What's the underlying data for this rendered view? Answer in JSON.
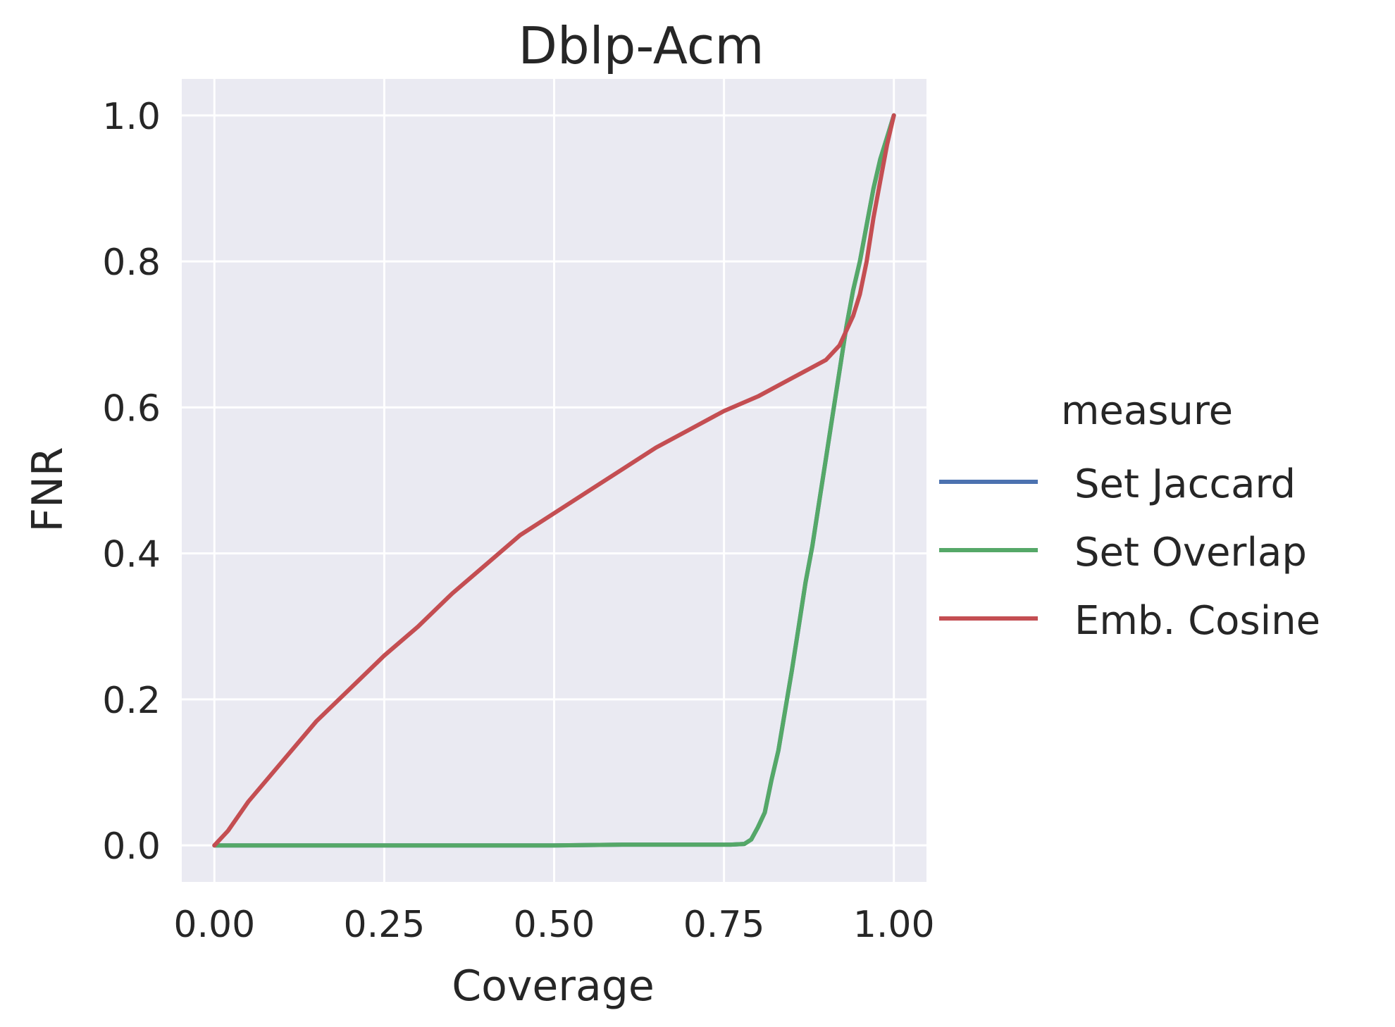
{
  "chart_data": {
    "type": "line",
    "title": "Dblp-Acm",
    "xlabel": "Coverage",
    "ylabel": "FNR",
    "xlim": [
      -0.048,
      1.048
    ],
    "ylim": [
      -0.05,
      1.05
    ],
    "x_ticks": [
      0.0,
      0.25,
      0.5,
      0.75,
      1.0
    ],
    "x_tick_labels": [
      "0.00",
      "0.25",
      "0.50",
      "0.75",
      "1.00"
    ],
    "y_ticks": [
      0.0,
      0.2,
      0.4,
      0.6,
      0.8,
      1.0
    ],
    "y_tick_labels": [
      "0.0",
      "0.2",
      "0.4",
      "0.6",
      "0.8",
      "1.0"
    ],
    "grid": true,
    "legend": {
      "title": "measure",
      "placement": "right"
    },
    "series": [
      {
        "name": "Set Jaccard",
        "color": "#4c72b0",
        "x": [
          0.0,
          0.1,
          0.2,
          0.3,
          0.4,
          0.5,
          0.6,
          0.7,
          0.76,
          0.78,
          0.79,
          0.8,
          0.81,
          0.82,
          0.83,
          0.84,
          0.85,
          0.86,
          0.87,
          0.88,
          0.89,
          0.9,
          0.91,
          0.92,
          0.93,
          0.94,
          0.95,
          0.96,
          0.97,
          0.98,
          0.99,
          1.0
        ],
        "y": [
          0.0,
          0.0,
          0.0,
          0.0,
          0.0,
          0.0,
          0.001,
          0.001,
          0.001,
          0.002,
          0.008,
          0.025,
          0.045,
          0.09,
          0.13,
          0.185,
          0.24,
          0.3,
          0.36,
          0.41,
          0.47,
          0.53,
          0.59,
          0.65,
          0.71,
          0.76,
          0.8,
          0.85,
          0.9,
          0.94,
          0.97,
          1.0
        ]
      },
      {
        "name": "Set Overlap",
        "color": "#55a868",
        "x": [
          0.0,
          0.1,
          0.2,
          0.3,
          0.4,
          0.5,
          0.6,
          0.7,
          0.76,
          0.78,
          0.79,
          0.8,
          0.81,
          0.82,
          0.83,
          0.84,
          0.85,
          0.86,
          0.87,
          0.88,
          0.89,
          0.9,
          0.91,
          0.92,
          0.93,
          0.94,
          0.95,
          0.96,
          0.97,
          0.98,
          0.99,
          1.0
        ],
        "y": [
          0.0,
          0.0,
          0.0,
          0.0,
          0.0,
          0.0,
          0.001,
          0.001,
          0.001,
          0.002,
          0.008,
          0.025,
          0.045,
          0.09,
          0.13,
          0.185,
          0.24,
          0.3,
          0.36,
          0.41,
          0.47,
          0.53,
          0.59,
          0.65,
          0.71,
          0.76,
          0.8,
          0.85,
          0.9,
          0.94,
          0.97,
          1.0
        ]
      },
      {
        "name": "Emb. Cosine",
        "color": "#c44e52",
        "x": [
          0.0,
          0.02,
          0.05,
          0.1,
          0.15,
          0.2,
          0.25,
          0.3,
          0.35,
          0.4,
          0.45,
          0.5,
          0.55,
          0.6,
          0.65,
          0.7,
          0.75,
          0.8,
          0.85,
          0.88,
          0.9,
          0.92,
          0.93,
          0.94,
          0.95,
          0.96,
          0.97,
          0.98,
          0.99,
          1.0
        ],
        "y": [
          0.0,
          0.02,
          0.06,
          0.115,
          0.17,
          0.215,
          0.26,
          0.3,
          0.345,
          0.385,
          0.425,
          0.455,
          0.485,
          0.515,
          0.545,
          0.57,
          0.595,
          0.615,
          0.64,
          0.655,
          0.665,
          0.685,
          0.705,
          0.725,
          0.755,
          0.8,
          0.86,
          0.91,
          0.96,
          1.0
        ]
      }
    ]
  }
}
